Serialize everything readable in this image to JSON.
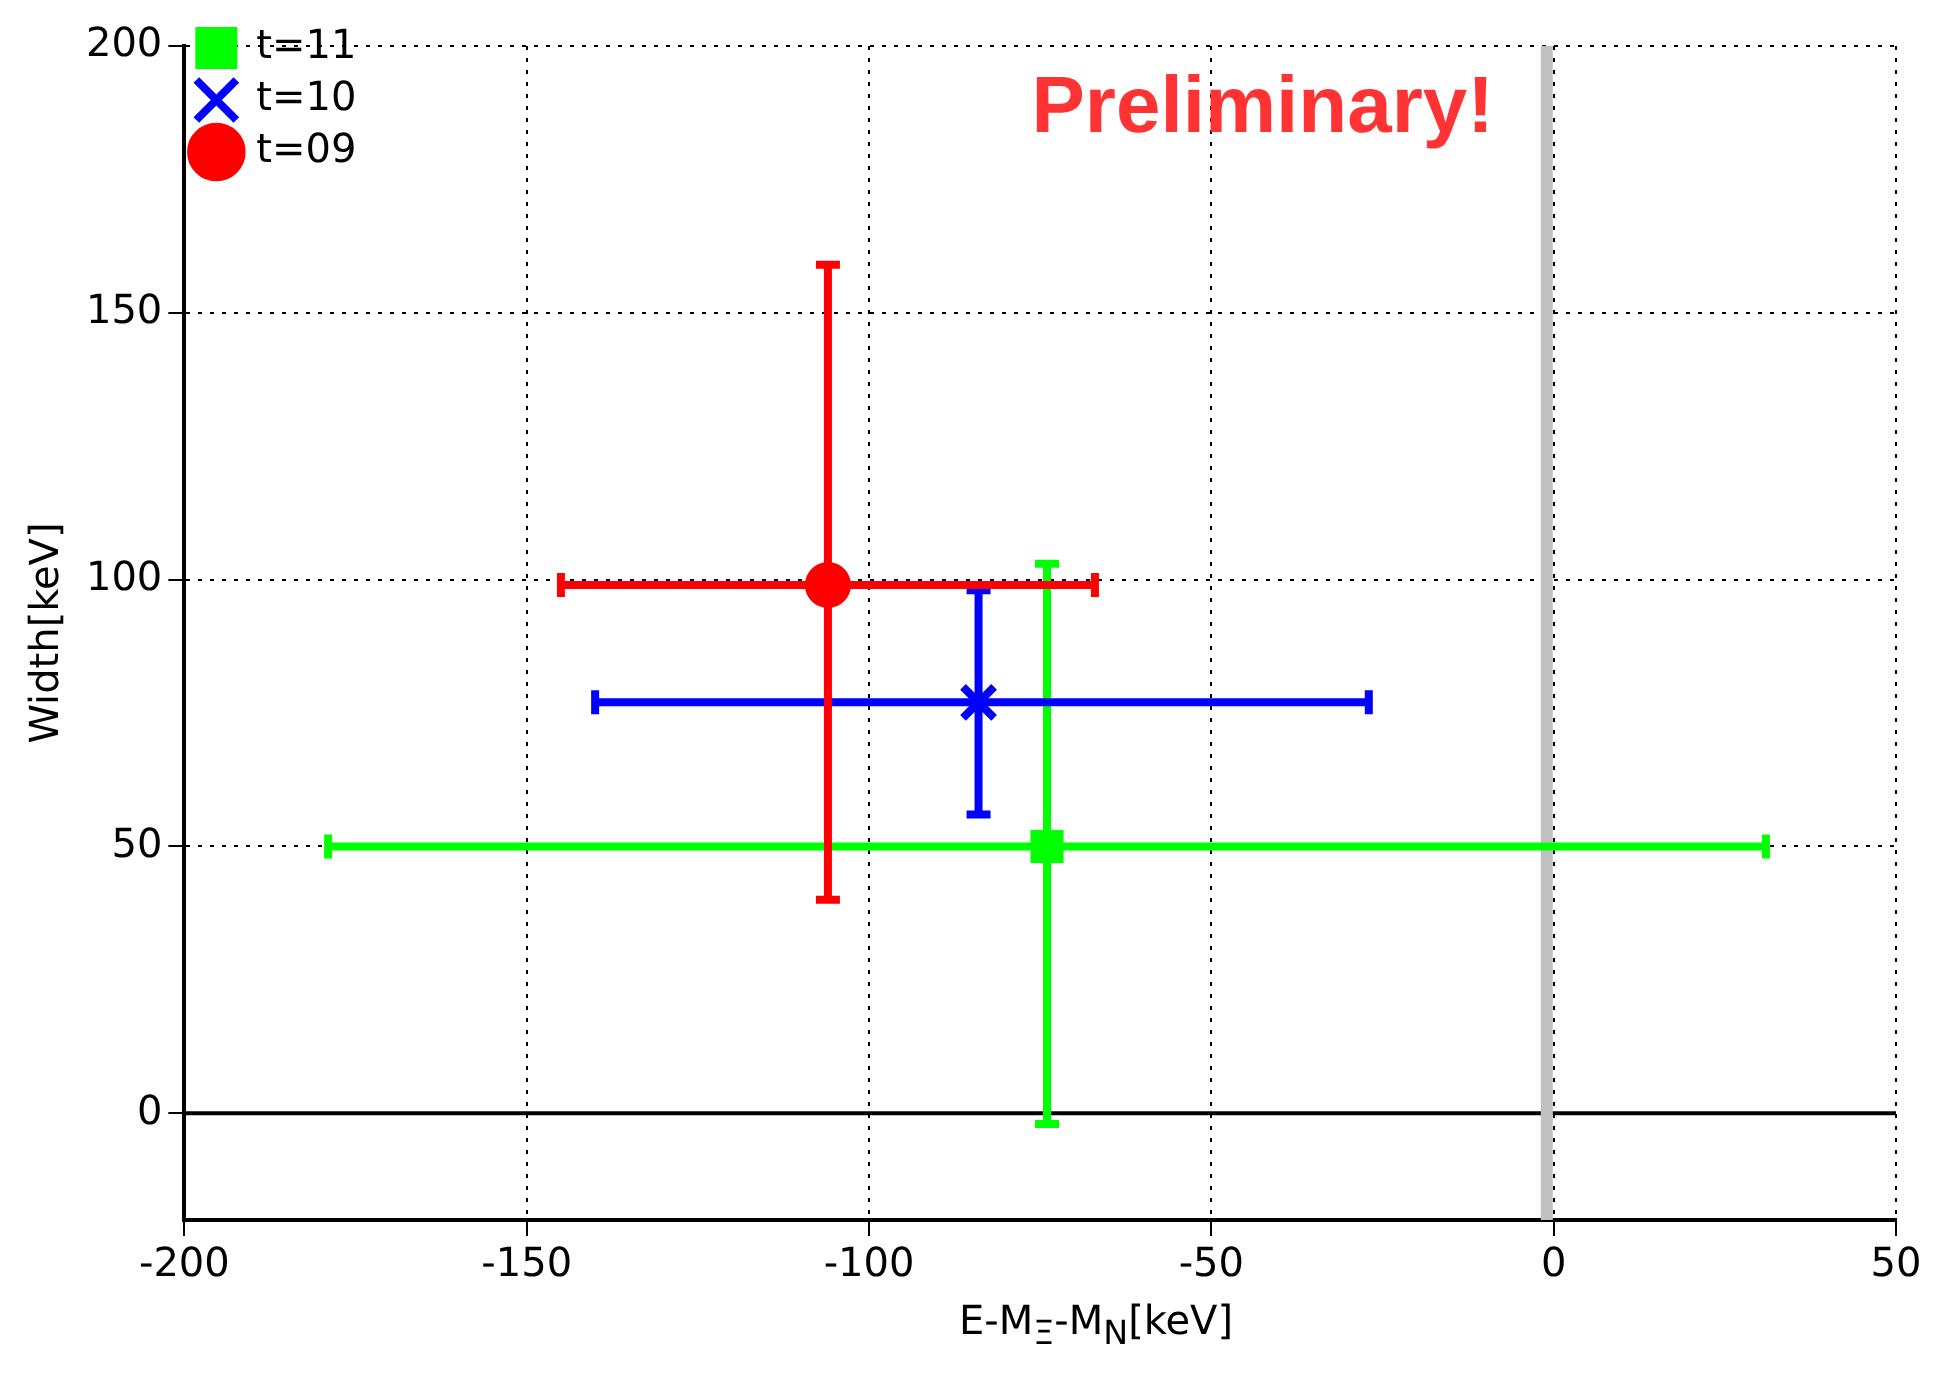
{
  "chart_data": {
    "type": "scatter",
    "xlabel": "E-M$_{Ξ}$-M$_{N}$[keV]",
    "ylabel": "Width[keV]",
    "annotations": [
      "Preliminary!"
    ],
    "xlim": [
      -200,
      50
    ],
    "xticks": [
      -200,
      -150,
      -100,
      -50,
      0,
      50
    ],
    "ylim": [
      -20,
      200
    ],
    "yticks": [
      0,
      50,
      100,
      150,
      200
    ],
    "grid": true,
    "legend": "top left",
    "ref_lines": [
      {
        "axis": "y",
        "value": 0,
        "color": "#000000"
      },
      {
        "axis": "x",
        "value": -1,
        "color": "#c0c0c0"
      }
    ],
    "series": [
      {
        "name": "t=11",
        "color": "#00ff00",
        "marker": "square",
        "x": [
          -74
        ],
        "values": [
          50
        ],
        "errors": [
          [
            -2,
            103
          ]
        ],
        "xerrors": [
          [
            -179,
            31
          ]
        ]
      },
      {
        "name": "t=10",
        "color": "#0000ff",
        "marker": "cross",
        "x": [
          -84
        ],
        "values": [
          77
        ],
        "errors": [
          [
            56,
            98
          ]
        ],
        "xerrors": [
          [
            -140,
            -27
          ]
        ]
      },
      {
        "name": "t=09",
        "color": "#ff0000",
        "marker": "circle",
        "x": [
          -106
        ],
        "values": [
          99
        ],
        "errors": [
          [
            40,
            159
          ]
        ],
        "xerrors": [
          [
            -145,
            -67
          ]
        ]
      }
    ]
  }
}
